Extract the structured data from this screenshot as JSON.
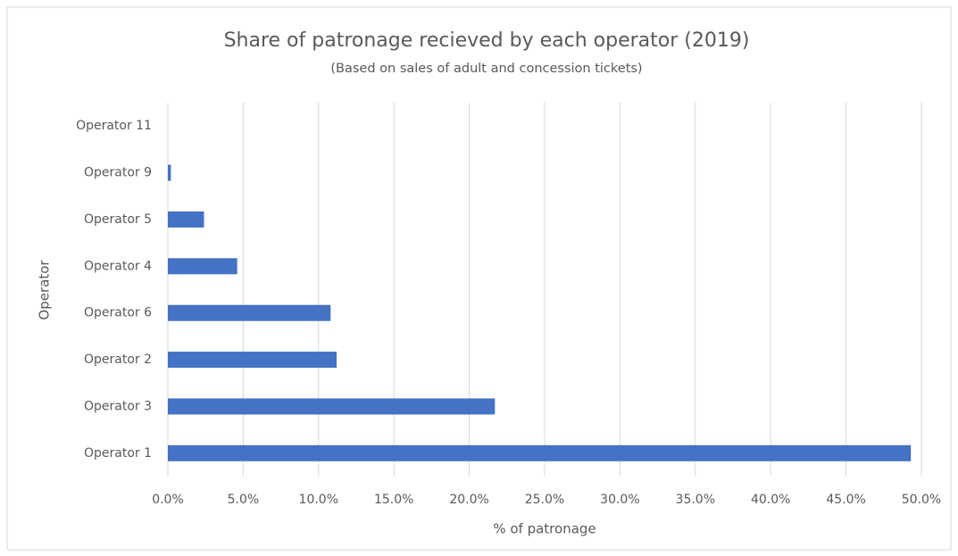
{
  "chart_data": {
    "type": "barh",
    "title": "Share of patronage recieved by each operator (2019)",
    "subtitle": "(Based on sales of adult and concession tickets)",
    "x_label": "% of patronage",
    "y_label": "Operator",
    "categories": [
      "Operator 1",
      "Operator 3",
      "Operator 2",
      "Operator 6",
      "Operator 4",
      "Operator 5",
      "Operator 9",
      "Operator 11"
    ],
    "values": [
      49.3,
      21.7,
      11.2,
      10.8,
      4.6,
      2.4,
      0.2,
      0
    ],
    "color": "#4472c4",
    "xlim": [
      0,
      50
    ],
    "xticks": [
      {
        "value": 0,
        "label": "0.0%"
      },
      {
        "value": 5,
        "label": "5.0%"
      },
      {
        "value": 10,
        "label": "10.0%"
      },
      {
        "value": 15,
        "label": "15.0%"
      },
      {
        "value": 20,
        "label": "20.0%"
      },
      {
        "value": 25,
        "label": "25.0%"
      },
      {
        "value": 30,
        "label": "30.0%"
      },
      {
        "value": 35,
        "label": "35.0%"
      },
      {
        "value": 40,
        "label": "40.0%"
      },
      {
        "value": 45,
        "label": "45.0%"
      },
      {
        "value": 50,
        "label": "50.0%"
      }
    ],
    "grid": true
  }
}
